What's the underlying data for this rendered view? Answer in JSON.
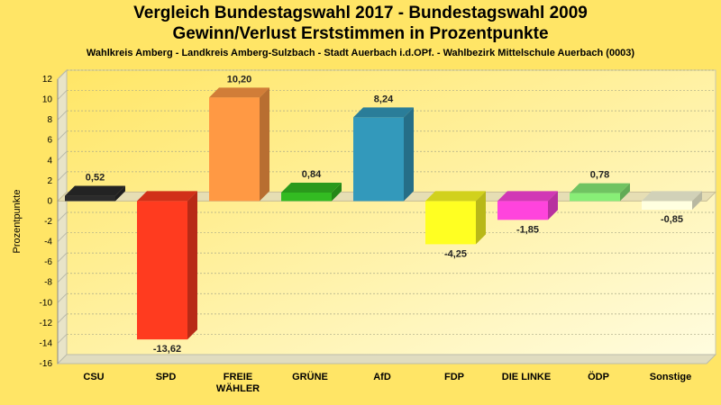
{
  "chart_data": {
    "type": "bar",
    "title": "Vergleich Bundestagswahl 2017 - Bundestagswahl 2009",
    "subtitle": "Gewinn/Verlust Erststimmen in Prozentpunkte",
    "caption": "Wahlkreis Amberg - Landkreis Amberg-Sulzbach - Stadt Auerbach i.d.OPf. - Wahlbezirk Mittelschule Auerbach (0003)",
    "ylabel": "Prozentpunkte",
    "xlabel": "",
    "ylim": [
      -16,
      12
    ],
    "yticks": [
      12,
      10,
      8,
      6,
      4,
      2,
      0,
      -2,
      -4,
      -6,
      -8,
      -10,
      -12,
      -14,
      -16
    ],
    "grid": true,
    "categories": [
      {
        "lines": [
          "CSU"
        ]
      },
      {
        "lines": [
          "SPD"
        ]
      },
      {
        "lines": [
          "FREIE",
          "WÄHLER"
        ]
      },
      {
        "lines": [
          "GRÜNE"
        ]
      },
      {
        "lines": [
          "AfD"
        ]
      },
      {
        "lines": [
          "FDP"
        ]
      },
      {
        "lines": [
          "DIE LINKE"
        ]
      },
      {
        "lines": [
          "ÖDP"
        ]
      },
      {
        "lines": [
          "Sonstige"
        ]
      }
    ],
    "values": [
      0.52,
      -13.62,
      10.2,
      0.84,
      8.24,
      -4.25,
      -1.85,
      0.78,
      -0.85
    ],
    "value_labels": [
      "0,52",
      "-13,62",
      "10,20",
      "0,84",
      "8,24",
      "-4,25",
      "-1,85",
      "0,78",
      "-0,85"
    ],
    "colors": [
      "#2B2B2B",
      "#FF3B1F",
      "#FF9944",
      "#33BB22",
      "#3399BB",
      "#FFFF22",
      "#FF44DD",
      "#88EE77",
      "#FFFFE0"
    ]
  }
}
